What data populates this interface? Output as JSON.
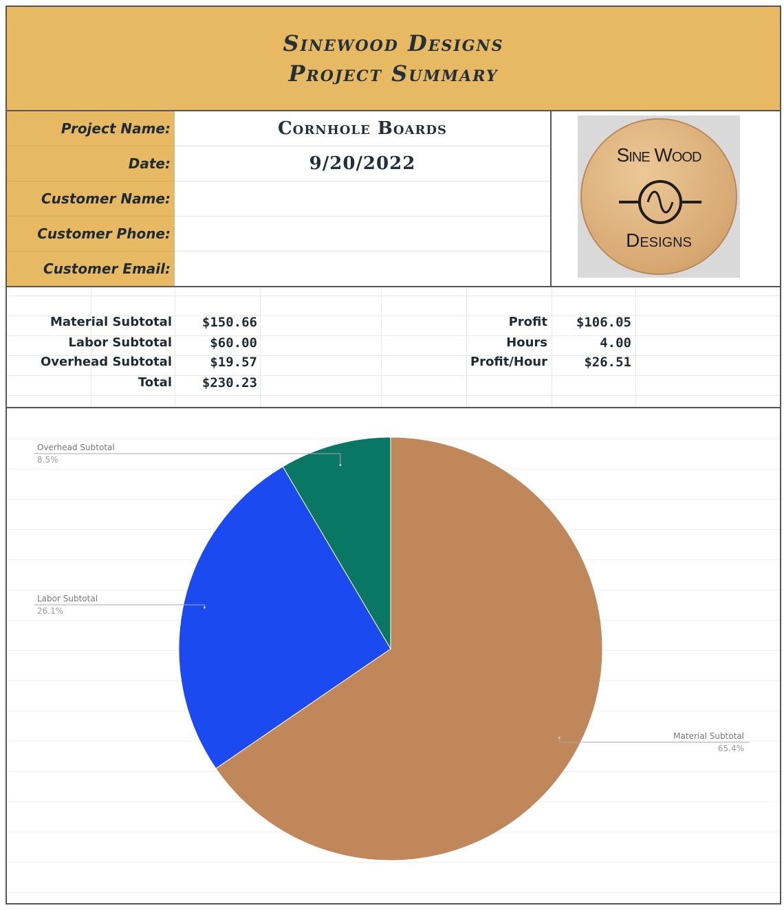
{
  "header": {
    "line1": "Sinewood Designs",
    "line2": "Project Summary",
    "background": "#e6b962"
  },
  "project": {
    "fields": [
      {
        "label": "Project Name:",
        "value": "Cornhole Boards"
      },
      {
        "label": "Date:",
        "value": "9/20/2022"
      },
      {
        "label": "Customer Name:",
        "value": ""
      },
      {
        "label": "Customer Phone:",
        "value": ""
      },
      {
        "label": "Customer Email:",
        "value": ""
      }
    ]
  },
  "logo": {
    "top_text": "Sine Wood",
    "bottom_text": "Designs",
    "icon": "sine-wave-icon"
  },
  "summary": {
    "left": [
      {
        "label": "Material Subtotal",
        "value": "$150.66"
      },
      {
        "label": "Labor Subtotal",
        "value": "$60.00"
      },
      {
        "label": "Overhead Subtotal",
        "value": "$19.57"
      },
      {
        "label": "Total",
        "value": "$230.23"
      }
    ],
    "right": [
      {
        "label": "Profit",
        "value": "$106.05"
      },
      {
        "label": "Hours",
        "value": "4.00"
      },
      {
        "label": "Profit/Hour",
        "value": "$26.51"
      }
    ]
  },
  "chart_data": {
    "type": "pie",
    "slices": [
      {
        "label": "Material Subtotal",
        "value": 150.66,
        "percent_label": "65.4%",
        "color": "#c0875a"
      },
      {
        "label": "Labor Subtotal",
        "value": 60.0,
        "percent_label": "26.1%",
        "color": "#1a4af0"
      },
      {
        "label": "Overhead Subtotal",
        "value": 19.57,
        "percent_label": "8.5%",
        "color": "#097764"
      }
    ],
    "start": "top",
    "direction": "clockwise",
    "legend": "callout labels"
  }
}
